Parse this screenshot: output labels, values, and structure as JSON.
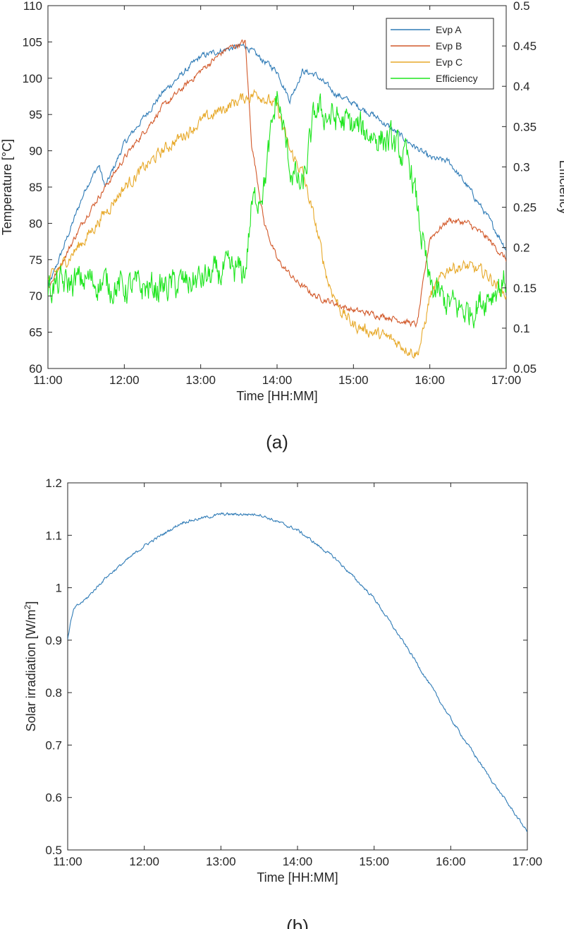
{
  "chart_data": [
    {
      "type": "line",
      "panel_label": "(a)",
      "xlabel": "Time [HH:MM]",
      "ylabel": "Temperature [°C]",
      "y2label": "Efficiency",
      "x_ticks": [
        "11:00",
        "12:00",
        "13:00",
        "14:00",
        "15:00",
        "16:00",
        "17:00"
      ],
      "xlim": [
        "11:00",
        "17:00"
      ],
      "ylim": [
        60,
        110
      ],
      "y_ticks": [
        60,
        65,
        70,
        75,
        80,
        85,
        90,
        95,
        100,
        105,
        110
      ],
      "y2lim": [
        0.05,
        0.5
      ],
      "y2_ticks": [
        "0.05",
        "0.1",
        "0.15",
        "0.2",
        "0.25",
        "0.3",
        "0.35",
        "0.4",
        "0.45",
        "0.5"
      ],
      "legend_position": "top-right",
      "series": [
        {
          "name": "Evp A",
          "axis": "left",
          "color": "#2f7bb6",
          "x": [
            "11:00",
            "11:15",
            "11:30",
            "11:40",
            "11:45",
            "12:00",
            "12:30",
            "13:00",
            "13:20",
            "13:35",
            "13:45",
            "14:00",
            "14:10",
            "14:20",
            "14:30",
            "14:45",
            "15:00",
            "15:15",
            "15:30",
            "15:45",
            "16:00",
            "16:15",
            "16:30",
            "16:45",
            "17:00"
          ],
          "y": [
            71,
            78,
            85,
            88,
            85,
            91,
            98,
            103,
            104,
            104.5,
            103,
            101,
            97,
            101,
            100.5,
            98,
            96.5,
            95,
            93,
            91,
            89,
            88.5,
            85,
            81,
            76.5
          ]
        },
        {
          "name": "Evp B",
          "axis": "left",
          "color": "#d2592a",
          "x": [
            "11:00",
            "11:30",
            "12:00",
            "12:30",
            "13:00",
            "13:20",
            "13:35",
            "13:40",
            "13:50",
            "14:00",
            "14:15",
            "14:30",
            "15:00",
            "15:30",
            "15:50",
            "15:55",
            "16:00",
            "16:15",
            "16:30",
            "16:45",
            "17:00"
          ],
          "y": [
            71,
            81,
            89,
            96,
            101,
            104,
            105,
            91,
            80,
            75,
            72,
            70,
            68,
            67,
            66,
            72,
            78,
            80.5,
            80,
            78,
            75
          ]
        },
        {
          "name": "Evp C",
          "axis": "left",
          "color": "#e7a92a",
          "x": [
            "11:00",
            "11:30",
            "12:00",
            "12:30",
            "13:00",
            "13:30",
            "13:45",
            "14:00",
            "14:10",
            "14:20",
            "14:30",
            "14:40",
            "14:50",
            "15:00",
            "15:30",
            "15:50",
            "15:55",
            "16:00",
            "16:15",
            "16:30",
            "16:45",
            "17:00"
          ],
          "y": [
            72,
            78,
            85,
            90,
            94,
            97,
            98,
            96,
            90,
            87,
            80,
            72,
            68,
            66,
            64,
            62,
            65,
            70,
            74,
            74,
            73,
            70
          ]
        },
        {
          "name": "Efficiency",
          "axis": "right",
          "color": "#1ee51e",
          "x": [
            "11:00",
            "11:30",
            "12:00",
            "12:30",
            "13:00",
            "13:20",
            "13:35",
            "13:40",
            "13:50",
            "14:00",
            "14:10",
            "14:20",
            "14:30",
            "14:45",
            "15:00",
            "15:30",
            "15:45",
            "15:55",
            "16:00",
            "16:15",
            "16:30",
            "16:45",
            "17:00"
          ],
          "y": [
            0.15,
            0.16,
            0.15,
            0.15,
            0.16,
            0.17,
            0.17,
            0.25,
            0.28,
            0.39,
            0.3,
            0.27,
            0.37,
            0.36,
            0.35,
            0.33,
            0.3,
            0.2,
            0.15,
            0.13,
            0.12,
            0.14,
            0.16
          ]
        }
      ]
    },
    {
      "type": "line",
      "panel_label": "(b)",
      "xlabel": "Time [HH:MM]",
      "ylabel_main": "Solar irradiation [W/m",
      "ylabel_sup": "2",
      "ylabel_tail": "]",
      "x_ticks": [
        "11:00",
        "12:00",
        "13:00",
        "14:00",
        "15:00",
        "16:00",
        "17:00"
      ],
      "xlim": [
        "11:00",
        "17:00"
      ],
      "ylim": [
        0.5,
        1.2
      ],
      "y_ticks": [
        "0.5",
        "0.6",
        "0.7",
        "0.8",
        "0.9",
        "1",
        "1.1",
        "1.2"
      ],
      "series": [
        {
          "color": "#2f7bb6",
          "x": [
            "11:00",
            "11:02",
            "11:05",
            "11:15",
            "11:30",
            "12:00",
            "12:30",
            "13:00",
            "13:30",
            "14:00",
            "14:30",
            "15:00",
            "15:30",
            "16:00",
            "16:30",
            "17:00"
          ],
          "y": [
            0.9,
            0.93,
            0.96,
            0.98,
            1.02,
            1.08,
            1.125,
            1.14,
            1.14,
            1.11,
            1.055,
            0.98,
            0.87,
            0.75,
            0.64,
            0.535
          ]
        }
      ]
    }
  ]
}
